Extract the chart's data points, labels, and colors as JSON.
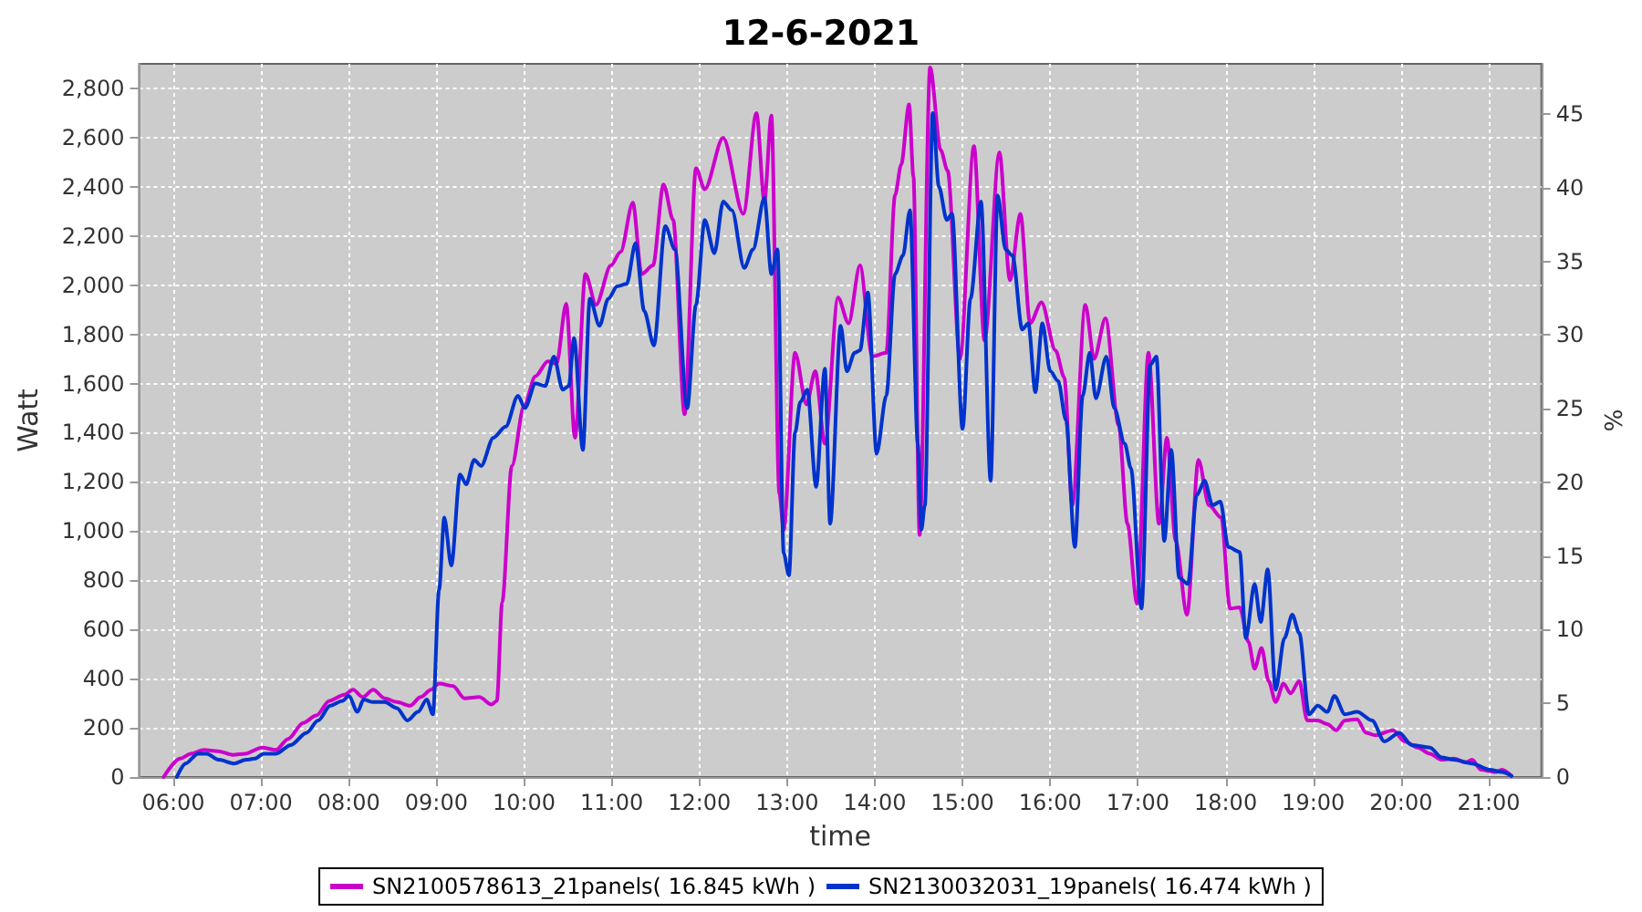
{
  "chart_data": {
    "type": "line",
    "title": "12-6-2021",
    "xlabel": "time",
    "ylabel": "Watt",
    "y2label": "%",
    "xlim": [
      5.61,
      21.6
    ],
    "xticks": [
      {
        "value": 6,
        "label": "06:00"
      },
      {
        "value": 7,
        "label": "07:00"
      },
      {
        "value": 8,
        "label": "08:00"
      },
      {
        "value": 9,
        "label": "09:00"
      },
      {
        "value": 10,
        "label": "10:00"
      },
      {
        "value": 11,
        "label": "11:00"
      },
      {
        "value": 12,
        "label": "12:00"
      },
      {
        "value": 13,
        "label": "13:00"
      },
      {
        "value": 14,
        "label": "14:00"
      },
      {
        "value": 15,
        "label": "15:00"
      },
      {
        "value": 16,
        "label": "16:00"
      },
      {
        "value": 17,
        "label": "17:00"
      },
      {
        "value": 18,
        "label": "18:00"
      },
      {
        "value": 19,
        "label": "19:00"
      },
      {
        "value": 20,
        "label": "20:00"
      },
      {
        "value": 21,
        "label": "21:00"
      }
    ],
    "ylim": [
      0,
      2900
    ],
    "yticks": [
      0,
      200,
      400,
      600,
      800,
      {
        "value": 1000,
        "label": "1,000"
      },
      {
        "value": 1200,
        "label": "1,200"
      },
      {
        "value": 1400,
        "label": "1,400"
      },
      {
        "value": 1600,
        "label": "1,600"
      },
      {
        "value": 1800,
        "label": "1,800"
      },
      {
        "value": 2000,
        "label": "2,000"
      },
      {
        "value": 2200,
        "label": "2,200"
      },
      {
        "value": 2400,
        "label": "2,400"
      },
      {
        "value": 2600,
        "label": "2,600"
      },
      {
        "value": 2800,
        "label": "2,800"
      }
    ],
    "y2lim": [
      0,
      48.4
    ],
    "y2ticks": [
      0,
      5,
      10,
      15,
      20,
      25,
      30,
      35,
      40,
      45
    ],
    "grid": true,
    "legend": "bottom",
    "series": [
      {
        "name": "SN2100578613_21panels( 16.845 kWh )",
        "color": "#cc00cc",
        "x": [
          5.89,
          6.08,
          6.2,
          6.35,
          6.51,
          6.68,
          6.82,
          7.01,
          7.17,
          7.31,
          7.48,
          7.63,
          7.78,
          7.95,
          8.05,
          8.16,
          8.28,
          8.41,
          8.55,
          8.7,
          8.82,
          8.94,
          9.03,
          9.19,
          9.32,
          9.49,
          9.63,
          9.69,
          9.75,
          9.86,
          10.0,
          10.13,
          10.27,
          10.37,
          10.48,
          10.58,
          10.7,
          10.82,
          10.99,
          11.1,
          11.24,
          11.34,
          11.47,
          11.59,
          11.7,
          11.83,
          11.96,
          12.06,
          12.27,
          12.5,
          12.65,
          12.74,
          12.82,
          12.91,
          12.96,
          13.09,
          13.22,
          13.32,
          13.43,
          13.58,
          13.7,
          13.83,
          13.97,
          14.13,
          14.23,
          14.3,
          14.39,
          14.44,
          14.51,
          14.63,
          14.75,
          14.83,
          14.97,
          15.13,
          15.25,
          15.42,
          15.54,
          15.66,
          15.77,
          15.9,
          16.06,
          16.16,
          16.25,
          16.4,
          16.5,
          16.63,
          16.78,
          16.88,
          16.99,
          17.12,
          17.24,
          17.33,
          17.43,
          17.56,
          17.69,
          17.81,
          17.95,
          18.05,
          18.16,
          18.26,
          18.33,
          18.41,
          18.49,
          18.57,
          18.66,
          18.74,
          18.84,
          18.93,
          19.05,
          19.16,
          19.26,
          19.36,
          19.5,
          19.6,
          19.71,
          19.91,
          20.04,
          20.19,
          20.33,
          20.46,
          20.6,
          20.74,
          20.81,
          20.91,
          21.08,
          21.15,
          21.26
        ],
        "values": [
          0,
          75,
          95,
          110,
          105,
          90,
          95,
          120,
          110,
          155,
          220,
          250,
          310,
          335,
          355,
          325,
          355,
          320,
          305,
          290,
          325,
          355,
          380,
          370,
          320,
          325,
          295,
          310,
          710,
          1265,
          1510,
          1630,
          1690,
          1680,
          1925,
          1380,
          2045,
          1920,
          2080,
          2135,
          2335,
          2045,
          2080,
          2410,
          2265,
          1475,
          2475,
          2390,
          2600,
          2290,
          2700,
          2340,
          2690,
          1155,
          1005,
          1725,
          1515,
          1650,
          1355,
          1950,
          1845,
          2080,
          1710,
          1725,
          2365,
          2490,
          2735,
          2440,
          985,
          2885,
          2550,
          2465,
          1700,
          2565,
          1775,
          2540,
          2020,
          2290,
          1845,
          1930,
          1735,
          1625,
          1105,
          1920,
          1700,
          1865,
          1430,
          1030,
          705,
          1725,
          1030,
          1380,
          960,
          660,
          1290,
          1105,
          1055,
          685,
          690,
          550,
          440,
          525,
          390,
          305,
          380,
          340,
          390,
          230,
          230,
          215,
          190,
          230,
          235,
          180,
          170,
          190,
          145,
          120,
          95,
          70,
          75,
          60,
          70,
          30,
          20,
          30,
          5
        ]
      },
      {
        "name": "SN2130032031_19panels( 16.474 kWh )",
        "color": "#0033cc",
        "x": [
          6.04,
          6.14,
          6.28,
          6.38,
          6.52,
          6.69,
          6.83,
          6.93,
          7.03,
          7.17,
          7.34,
          7.52,
          7.65,
          7.79,
          7.93,
          8.0,
          8.1,
          8.17,
          8.27,
          8.41,
          8.55,
          8.67,
          8.79,
          8.89,
          8.96,
          9.03,
          9.09,
          9.17,
          9.27,
          9.34,
          9.43,
          9.51,
          9.65,
          9.79,
          9.93,
          10.01,
          10.13,
          10.24,
          10.34,
          10.44,
          10.51,
          10.57,
          10.67,
          10.75,
          10.86,
          10.96,
          11.06,
          11.17,
          11.27,
          11.37,
          11.48,
          11.61,
          11.72,
          11.86,
          11.96,
          12.06,
          12.17,
          12.27,
          12.37,
          12.51,
          12.61,
          12.74,
          12.82,
          12.89,
          12.96,
          13.02,
          13.09,
          13.15,
          13.23,
          13.33,
          13.43,
          13.49,
          13.61,
          13.68,
          13.77,
          13.83,
          13.92,
          14.02,
          14.13,
          14.23,
          14.32,
          14.4,
          14.49,
          14.53,
          14.57,
          14.66,
          14.73,
          14.82,
          14.88,
          15.0,
          15.09,
          15.21,
          15.32,
          15.4,
          15.49,
          15.57,
          15.68,
          15.75,
          15.83,
          15.91,
          16.0,
          16.09,
          16.18,
          16.28,
          16.37,
          16.45,
          16.52,
          16.64,
          16.73,
          16.85,
          16.92,
          17.04,
          17.14,
          17.21,
          17.3,
          17.38,
          17.47,
          17.57,
          17.67,
          17.76,
          17.85,
          17.94,
          18.03,
          18.16,
          18.23,
          18.33,
          18.4,
          18.48,
          18.57,
          18.67,
          18.76,
          18.84,
          18.95,
          19.05,
          19.16,
          19.24,
          19.36,
          19.5,
          19.67,
          19.81,
          19.98,
          20.12,
          20.33,
          20.46,
          20.6,
          20.81,
          21.01,
          21.15,
          21.26
        ],
        "values": [
          0,
          55,
          95,
          95,
          70,
          55,
          70,
          75,
          95,
          95,
          130,
          180,
          230,
          290,
          310,
          330,
          265,
          315,
          305,
          305,
          280,
          230,
          265,
          315,
          255,
          760,
          1055,
          860,
          1230,
          1190,
          1290,
          1265,
          1380,
          1425,
          1550,
          1500,
          1600,
          1590,
          1710,
          1575,
          1590,
          1785,
          1330,
          1945,
          1835,
          1945,
          1995,
          2005,
          2170,
          1895,
          1755,
          2240,
          2145,
          1500,
          1920,
          2265,
          2130,
          2340,
          2305,
          2070,
          2145,
          2355,
          2045,
          2145,
          910,
          820,
          1400,
          1525,
          1575,
          1180,
          1660,
          1030,
          1835,
          1650,
          1725,
          1735,
          1970,
          1315,
          1550,
          2045,
          2120,
          2305,
          1355,
          1005,
          1105,
          2700,
          2400,
          2265,
          2290,
          1415,
          1945,
          2340,
          1205,
          2365,
          2145,
          2120,
          1820,
          1845,
          1565,
          1845,
          1650,
          1610,
          1450,
          935,
          1550,
          1725,
          1540,
          1710,
          1500,
          1355,
          1255,
          685,
          1675,
          1710,
          960,
          1330,
          810,
          785,
          1145,
          1205,
          1105,
          1120,
          935,
          915,
          565,
          785,
          630,
          845,
          355,
          565,
          660,
          585,
          255,
          290,
          265,
          330,
          255,
          265,
          230,
          145,
          180,
          130,
          120,
          80,
          70,
          55,
          30,
          20,
          5
        ]
      }
    ]
  }
}
